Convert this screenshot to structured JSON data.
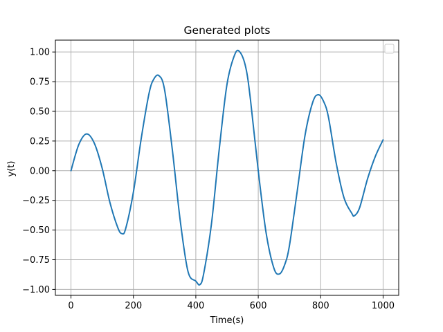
{
  "chart_data": {
    "type": "line",
    "title": "Generated plots",
    "xlabel": "Time(s)",
    "ylabel": "y(t)",
    "xlim": [
      -50,
      1050
    ],
    "ylim": [
      -1.05,
      1.1
    ],
    "x_ticks": [
      0,
      200,
      400,
      600,
      800,
      1000
    ],
    "x_tick_labels": [
      "0",
      "200",
      "400",
      "600",
      "800",
      "1000"
    ],
    "y_ticks": [
      -1.0,
      -0.75,
      -0.5,
      -0.25,
      0.0,
      0.25,
      0.5,
      0.75,
      1.0
    ],
    "y_tick_labels": [
      "−1.00",
      "−0.75",
      "−0.50",
      "−0.25",
      "0.00",
      "0.25",
      "0.50",
      "0.75",
      "1.00"
    ],
    "grid": true,
    "legend": {
      "placement": "top-right",
      "entries": []
    },
    "colors": {
      "series": "#1f77b4",
      "grid": "#b0b0b0",
      "axes": "#000000"
    },
    "series": [
      {
        "x": [
          0,
          25,
          50,
          75,
          100,
          125,
          150,
          163,
          175,
          200,
          225,
          250,
          265,
          282,
          300,
          325,
          350,
          375,
          400,
          413,
          425,
          450,
          475,
          500,
          525,
          541,
          560,
          575,
          600,
          625,
          650,
          668,
          685,
          700,
          725,
          750,
          775,
          793,
          810,
          825,
          850,
          875,
          900,
          908,
          925,
          950,
          975,
          1000
        ],
        "y": [
          0.0,
          0.22,
          0.31,
          0.23,
          0.02,
          -0.27,
          -0.48,
          -0.53,
          -0.49,
          -0.18,
          0.27,
          0.65,
          0.77,
          0.8,
          0.68,
          0.17,
          -0.42,
          -0.85,
          -0.93,
          -0.96,
          -0.87,
          -0.45,
          0.18,
          0.73,
          0.98,
          1.0,
          0.87,
          0.6,
          0.0,
          -0.52,
          -0.82,
          -0.87,
          -0.79,
          -0.63,
          -0.17,
          0.3,
          0.58,
          0.64,
          0.58,
          0.45,
          0.06,
          -0.23,
          -0.36,
          -0.38,
          -0.31,
          -0.07,
          0.12,
          0.26
        ]
      }
    ]
  }
}
